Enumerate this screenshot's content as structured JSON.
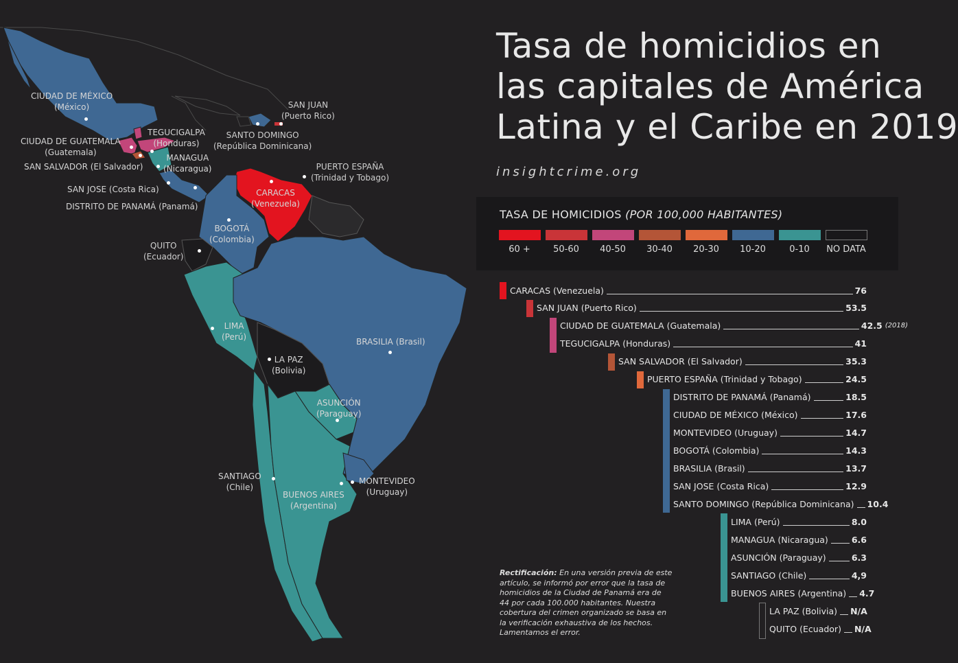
{
  "title_lines": [
    "Tasa de homicidios en",
    "las capitales de América",
    "Latina y el Caribe en 2019"
  ],
  "source": "insightcrime.org",
  "legend": {
    "title_main": "TASA DE HOMICIDIOS",
    "title_italic": "(POR 100,000 HABITANTES)",
    "items": [
      {
        "label": "60 +",
        "color": "#e3141f"
      },
      {
        "label": "50-60",
        "color": "#c93438"
      },
      {
        "label": "40-50",
        "color": "#c2467a"
      },
      {
        "label": "30-40",
        "color": "#b45537"
      },
      {
        "label": "20-30",
        "color": "#e0683b"
      },
      {
        "label": "10-20",
        "color": "#3f6893"
      },
      {
        "label": "0-10",
        "color": "#3a9492"
      },
      {
        "label": "NO DATA",
        "color": "transparent"
      }
    ]
  },
  "ranking": [
    {
      "name": "CARACAS (Venezuela)",
      "value": "76",
      "color": "#e3141f"
    },
    {
      "name": "SAN JUAN (Puerto Rico)",
      "value": "53.5",
      "color": "#c93438"
    },
    {
      "name": "CIUDAD DE GUATEMALA (Guatemala)",
      "value": "42.5",
      "note": "(2018)",
      "color": "#c2467a"
    },
    {
      "name": "TEGUCIGALPA (Honduras)",
      "value": "41",
      "color": "#c2467a"
    },
    {
      "name": "SAN SALVADOR (El Salvador)",
      "value": "35.3",
      "color": "#b45537"
    },
    {
      "name": "PUERTO ESPAÑA (Trinidad y Tobago)",
      "value": "24.5",
      "color": "#e0683b"
    },
    {
      "name": "DISTRITO DE PANAMÁ (Panamá)",
      "value": "18.5",
      "color": "#3f6893"
    },
    {
      "name": "CIUDAD DE MÉXICO (México)",
      "value": "17.6",
      "color": "#3f6893"
    },
    {
      "name": "MONTEVIDEO (Uruguay)",
      "value": "14.7",
      "color": "#3f6893"
    },
    {
      "name": "BOGOTÁ (Colombia)",
      "value": "14.3",
      "color": "#3f6893"
    },
    {
      "name": "BRASILIA (Brasil)",
      "value": "13.7",
      "color": "#3f6893"
    },
    {
      "name": "SAN JOSE (Costa Rica)",
      "value": "12.9",
      "color": "#3f6893"
    },
    {
      "name": "SANTO DOMINGO (República Dominicana)",
      "value": "10.4",
      "color": "#3f6893"
    },
    {
      "name": "LIMA (Perú)",
      "value": "8.0",
      "color": "#3a9492"
    },
    {
      "name": "MANAGUA (Nicaragua)",
      "value": "6.6",
      "color": "#3a9492"
    },
    {
      "name": "ASUNCIÓN (Paraguay)",
      "value": "6.3",
      "color": "#3a9492"
    },
    {
      "name": "SANTIAGO (Chile)",
      "value": "4,9",
      "color": "#3a9492"
    },
    {
      "name": "BUENOS AIRES (Argentina)",
      "value": "4.7",
      "color": "#3a9492"
    },
    {
      "name": "LA PAZ (Bolivia)",
      "value": "N/A",
      "color": "transparent"
    },
    {
      "name": "QUITO (Ecuador)",
      "value": "N/A",
      "color": "transparent"
    }
  ],
  "correction": {
    "label": "Rectificación:",
    "text": " En una versión previa de este artículo, se informó por error que la tasa de homicidios de la Ciudad de Panamá era de 44 por cada 100.000 habitantes. Nuestra cobertura del crimen organizado se basa en la verificación exhaustiva de los hechos. Lamentamos el error."
  },
  "map_labels": [
    {
      "id": "mexico",
      "l1": "CIUDAD DE MÉXICO",
      "l2": "(México)"
    },
    {
      "id": "guatemala",
      "l1": "CIUDAD DE GUATEMALA",
      "l2": "(Guatemala)"
    },
    {
      "id": "tegucigalpa",
      "l1": "TEGUCIGALPA",
      "l2": "(Honduras)"
    },
    {
      "id": "sansalvador",
      "l1": "SAN SALVADOR (El Salvador)",
      "l2": ""
    },
    {
      "id": "managua",
      "l1": "MANAGUA",
      "l2": "(Nicaragua)"
    },
    {
      "id": "sanjose",
      "l1": "SAN JOSE (Costa Rica)",
      "l2": ""
    },
    {
      "id": "panama",
      "l1": "DISTRITO DE PANAMÁ (Panamá)",
      "l2": ""
    },
    {
      "id": "sanjuan",
      "l1": "SAN JUAN",
      "l2": "(Puerto Rico)"
    },
    {
      "id": "santodomingo",
      "l1": "SANTO DOMINGO",
      "l2": "(República Dominicana)"
    },
    {
      "id": "puertoespana",
      "l1": "PUERTO ESPAÑA",
      "l2": "(Trinidad y Tobago)"
    },
    {
      "id": "caracas",
      "l1": "CARACAS",
      "l2": "(Venezuela)"
    },
    {
      "id": "bogota",
      "l1": "BOGOTÁ",
      "l2": "(Colombia)"
    },
    {
      "id": "quito",
      "l1": "QUITO",
      "l2": "(Ecuador)"
    },
    {
      "id": "lima",
      "l1": "LIMA",
      "l2": "(Perú)"
    },
    {
      "id": "lapaz",
      "l1": "LA PAZ",
      "l2": "(Bolivia)"
    },
    {
      "id": "brasilia",
      "l1": "BRASILIA (Brasil)",
      "l2": ""
    },
    {
      "id": "asuncion",
      "l1": "ASUNCIÓN",
      "l2": "(Paraguay)"
    },
    {
      "id": "santiago",
      "l1": "SANTIAGO",
      "l2": "(Chile)"
    },
    {
      "id": "buenosaires",
      "l1": "BUENOS AIRES",
      "l2": "(Argentina)"
    },
    {
      "id": "montevideo",
      "l1": "MONTEVIDEO",
      "l2": "(Uruguay)"
    }
  ]
}
